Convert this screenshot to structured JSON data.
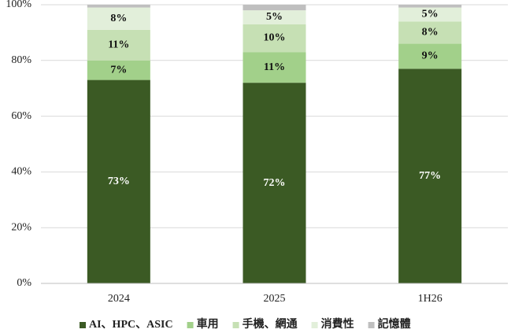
{
  "chart_data": {
    "type": "stacked_bar",
    "categories": [
      "2024",
      "2025",
      "1H26"
    ],
    "series": [
      {
        "name": "AI、HPC、ASIC",
        "color": "#3b5a24",
        "values": [
          73,
          72,
          77
        ],
        "value_labels": [
          "73%",
          "72%",
          "77%"
        ]
      },
      {
        "name": "車用",
        "color": "#a2d08a",
        "values": [
          7,
          11,
          9
        ],
        "value_labels": [
          "7%",
          "11%",
          "9%"
        ]
      },
      {
        "name": "手機、網通",
        "color": "#c6e0b4",
        "values": [
          11,
          10,
          8
        ],
        "value_labels": [
          "11%",
          "10%",
          "8%"
        ]
      },
      {
        "name": "消費性",
        "color": "#e2efda",
        "values": [
          8,
          5,
          5
        ],
        "value_labels": [
          "8%",
          "5%",
          "5%"
        ]
      },
      {
        "name": "記憶體",
        "color": "#bfbfbf",
        "values": [
          1,
          2,
          1
        ]
      }
    ],
    "ylim": [
      0,
      100
    ],
    "yticks": [
      {
        "value": 0,
        "label": "0%"
      },
      {
        "value": 20,
        "label": "20%"
      },
      {
        "value": 40,
        "label": "40%"
      },
      {
        "value": 60,
        "label": "60%"
      },
      {
        "value": 80,
        "label": "80%"
      },
      {
        "value": 100,
        "label": "100%"
      }
    ],
    "grid": true,
    "legend": "bottom"
  }
}
